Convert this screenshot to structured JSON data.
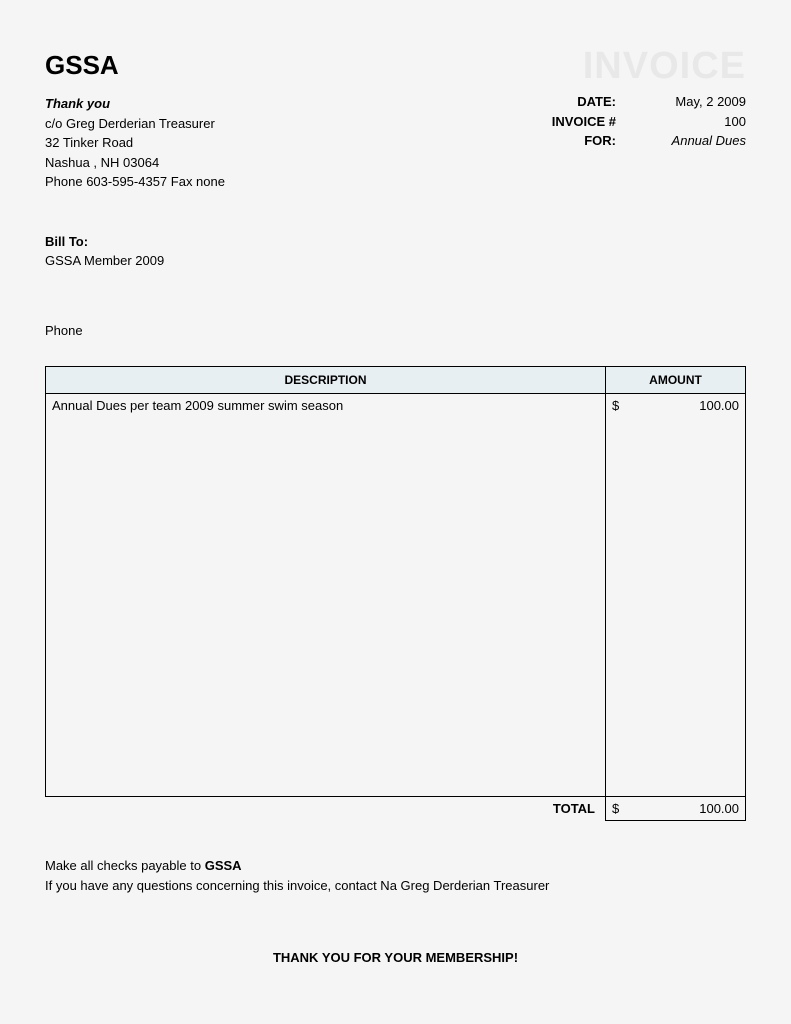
{
  "header": {
    "company": "GSSA",
    "watermark": "INVOICE",
    "thank_you": "Thank you",
    "from_line1": "c/o Greg Derderian Treasurer",
    "from_line2": "32 Tinker Road",
    "from_line3": "Nashua , NH 03064",
    "from_line4": "Phone 603-595-4357   Fax none"
  },
  "meta": {
    "date_label": "DATE:",
    "date_value": "May, 2 2009",
    "invoice_num_label": "INVOICE #",
    "invoice_num_value": "100",
    "for_label": "FOR:",
    "for_value": "Annual Dues"
  },
  "bill_to": {
    "label": "Bill To:",
    "value": "GSSA Member 2009",
    "phone_label": "Phone"
  },
  "table": {
    "columns": {
      "description": "DESCRIPTION",
      "amount": "AMOUNT"
    },
    "row": {
      "description": "Annual Dues per team 2009 summer swim season",
      "currency": "$",
      "amount": "100.00"
    },
    "total_label": "TOTAL",
    "total_currency": "$",
    "total_amount": "100.00",
    "header_bg": "#e8eff3",
    "border_color": "#000000"
  },
  "footer": {
    "payable_prefix": "Make all checks payable to ",
    "payable_name": "GSSA",
    "questions": "If you have any questions concerning this invoice, contact Na Greg Derderian Treasurer",
    "thank_you": "THANK YOU FOR YOUR MEMBERSHIP!"
  }
}
